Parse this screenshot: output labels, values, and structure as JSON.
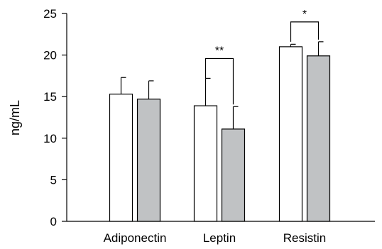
{
  "chart_data": {
    "type": "bar",
    "categories": [
      "Adiponectin",
      "Leptin",
      "Resistin"
    ],
    "series": [
      {
        "values": [
          15.3,
          13.9,
          21.0
        ],
        "errors": [
          2.0,
          3.3,
          0.3
        ],
        "color": "#ffffff"
      },
      {
        "values": [
          14.7,
          11.1,
          19.9
        ],
        "errors": [
          2.2,
          2.7,
          1.7
        ],
        "color": "#c0c2c4"
      }
    ],
    "title": "",
    "xlabel": "",
    "ylabel": "ng/mL",
    "ylim": [
      0,
      25
    ],
    "yticks": [
      0,
      5,
      10,
      15,
      20,
      25
    ],
    "grid": false,
    "significance": [
      {
        "category": "Leptin",
        "label": "**"
      },
      {
        "category": "Resistin",
        "label": "*"
      }
    ]
  }
}
